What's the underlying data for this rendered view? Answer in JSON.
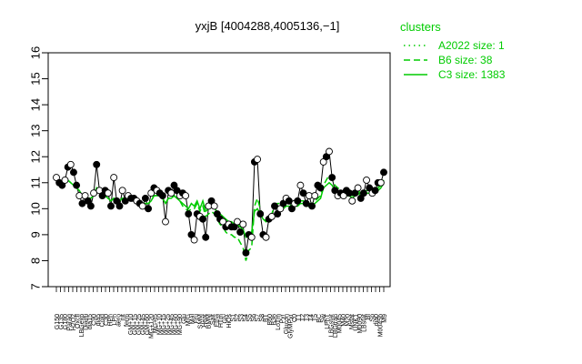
{
  "chart_data": {
    "type": "line",
    "title": "yxjB [4004288,4005136,−1]",
    "ylim": [
      7,
      16
    ],
    "yticks": [
      7,
      8,
      9,
      10,
      11,
      12,
      13,
      14,
      15,
      16
    ],
    "grid": false,
    "legend": {
      "title": "clusters",
      "placement": "top-right",
      "color": "#00cc00",
      "entries": [
        {
          "label": "A2022 size: 1",
          "style": "dotted"
        },
        {
          "label": "B6 size: 38",
          "style": "dashed"
        },
        {
          "label": "C3 size: 1383",
          "style": "solid"
        }
      ]
    },
    "x_tick_labels": [
      "G150",
      "G135",
      "G180",
      "Paraq",
      "H2O2",
      "Oxctl",
      "LBGexp",
      "Diami",
      "dia15",
      "C90",
      "dia5",
      "Cold",
      "C30",
      "HPh",
      "LPh",
      "aero",
      "nit",
      "ferm",
      "GM+10",
      "GM+15",
      "GM+25",
      "GM+45",
      "GM+60",
      "MG+120",
      "MG+t5",
      "MG+10",
      "MG+15",
      "MG+25",
      "MG+45",
      "MG+60",
      "MG+90",
      "Glu",
      "M/G",
      "Mal",
      "Fru",
      "SMM",
      "Heat",
      "BMM",
      "Salt",
      "Etha",
      "HTm",
      "Gly",
      "HiOs",
      "S1",
      "S2",
      "S3",
      "S4",
      "S5",
      "S6",
      "S7",
      "S8",
      "BT",
      "B60",
      "B36",
      "LoTm",
      "Pyr",
      "Glucon",
      "GlyMPyr",
      "C0",
      "T1",
      "T2",
      "T3",
      "T4",
      "T5",
      "BC",
      "Sw",
      "LPhT",
      "LBGstat",
      "LBGtran",
      "M0045",
      "M40",
      "M20",
      "Mstat",
      "UNK1",
      "M0090",
      "LBstat",
      "Bl",
      "Sp",
      "dia0",
      "M0045b",
      "M9"
    ],
    "series": [
      {
        "values": [
          11.2,
          11.0,
          10.9,
          11.1,
          11.6,
          11.7,
          11.4,
          10.9,
          10.5,
          10.2,
          10.5,
          10.3,
          10.1,
          10.6,
          11.7,
          10.7,
          10.5,
          10.7,
          10.6,
          10.1,
          11.2,
          10.3,
          10.1,
          10.7,
          10.3,
          10.5,
          10.4,
          10.4,
          10.3,
          10.2,
          10.1,
          10.4,
          10.0,
          10.6,
          10.8,
          10.7,
          10.6,
          10.5,
          9.5,
          10.7,
          10.6,
          10.9,
          10.7,
          10.5,
          10.6,
          10.5,
          9.8,
          9.0,
          8.8,
          9.8,
          9.7,
          9.6,
          8.9,
          10.1,
          10.3,
          10.1,
          9.8,
          9.6,
          9.5,
          9.3,
          9.4,
          9.3,
          9.3,
          9.5,
          9.1,
          9.4,
          8.3,
          9.0,
          8.9,
          11.8,
          11.9,
          9.8,
          9.0,
          8.9,
          9.6,
          9.7,
          10.1,
          9.8,
          10.0,
          10.2,
          10.4,
          10.3,
          10.0,
          10.2,
          10.3,
          10.9,
          10.6,
          10.2,
          10.5,
          10.1,
          10.5,
          10.9,
          10.8,
          11.8,
          12.0,
          12.2,
          11.2,
          10.7,
          10.5,
          10.6,
          10.5,
          10.7,
          10.6,
          10.3,
          10.6,
          10.8,
          10.4,
          10.6,
          11.1,
          10.8,
          10.6,
          10.7,
          11.0,
          11.0,
          11.4
        ]
      },
      {
        "name": "C3 size: 1383",
        "style": "solid",
        "values": [
          11.0,
          11.0,
          11.0,
          11.1,
          11.1,
          11.0,
          10.9,
          10.8,
          10.7,
          10.5,
          10.5,
          10.4,
          10.4,
          10.5,
          10.8,
          10.6,
          10.5,
          10.5,
          10.4,
          10.3,
          10.4,
          10.3,
          10.3,
          10.4,
          10.4,
          10.4,
          10.3,
          10.3,
          10.3,
          10.3,
          10.2,
          10.2,
          10.2,
          10.3,
          10.5,
          10.5,
          10.5,
          10.4,
          10.2,
          10.4,
          10.4,
          10.5,
          10.4,
          10.3,
          10.2,
          10.1,
          10.0,
          10.2,
          10.1,
          10.3,
          10.0,
          10.3,
          9.9,
          10.0,
          10.1,
          10.0,
          9.9,
          9.8,
          9.7,
          9.6,
          9.5,
          9.5,
          9.4,
          9.4,
          9.3,
          9.2,
          8.9,
          9.0,
          9.1,
          9.9,
          10.0,
          9.8,
          9.6,
          9.5,
          9.6,
          9.7,
          9.8,
          9.9,
          10.0,
          10.0,
          10.1,
          10.1,
          10.0,
          10.1,
          10.1,
          10.2,
          10.2,
          10.1,
          10.1,
          10.1,
          10.2,
          10.3,
          10.4,
          10.8,
          10.9,
          11.0,
          10.9,
          10.7,
          10.6,
          10.6,
          10.5,
          10.5,
          10.5,
          10.4,
          10.5,
          10.6,
          10.5,
          10.5,
          10.6,
          10.6,
          10.6,
          10.7,
          10.7,
          10.8,
          11.0
        ]
      },
      {
        "name": "B6 size: 38",
        "style": "dashed",
        "values": [
          11.0,
          11.0,
          11.0,
          11.1,
          11.1,
          11.0,
          10.9,
          10.8,
          10.7,
          10.5,
          10.5,
          10.4,
          10.4,
          10.5,
          10.7,
          10.6,
          10.5,
          10.5,
          10.4,
          10.3,
          10.4,
          10.3,
          10.3,
          10.4,
          10.4,
          10.4,
          10.3,
          10.3,
          10.3,
          10.3,
          10.2,
          10.2,
          10.2,
          10.3,
          10.5,
          10.5,
          10.5,
          10.4,
          10.2,
          10.4,
          10.4,
          10.5,
          10.4,
          10.3,
          10.1,
          10.0,
          9.9,
          10.0,
          10.0,
          10.2,
          9.9,
          10.1,
          9.7,
          9.8,
          9.9,
          9.8,
          9.6,
          9.4,
          9.3,
          9.1,
          9.0,
          9.0,
          8.9,
          8.9,
          8.7,
          8.5,
          8.0,
          8.4,
          8.5,
          10.1,
          10.4,
          10.0,
          9.7,
          9.5,
          9.6,
          9.8,
          10.1,
          10.2,
          10.2,
          10.2,
          10.3,
          10.2,
          10.1,
          10.2,
          10.2,
          10.3,
          10.3,
          10.2,
          10.2,
          10.2,
          10.3,
          10.4,
          10.5,
          10.9,
          11.1,
          11.3,
          11.1,
          10.9,
          10.8,
          10.7,
          10.6,
          10.6,
          10.6,
          10.5,
          10.6,
          10.7,
          10.6,
          10.6,
          10.7,
          10.7,
          10.7,
          10.8,
          10.8,
          10.9,
          11.1
        ]
      }
    ]
  }
}
